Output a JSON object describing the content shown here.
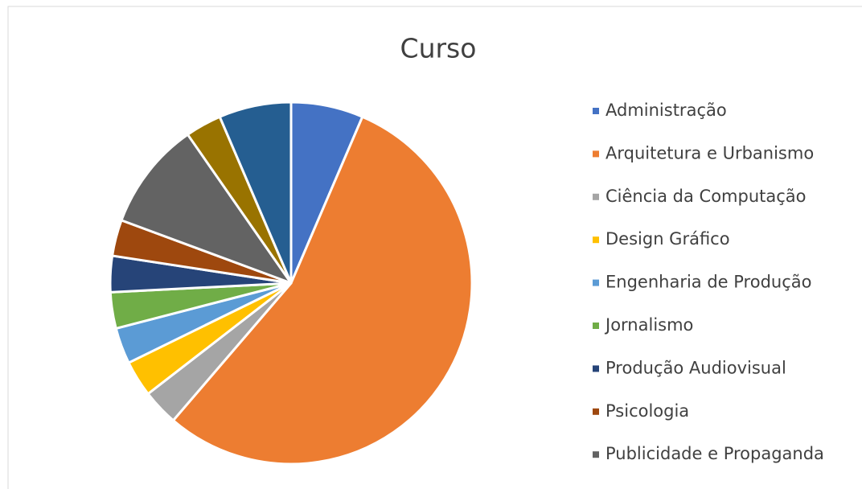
{
  "chart_data": {
    "type": "pie",
    "title": "Curso",
    "categories": [
      "Administração",
      "Arquitetura e Urbanismo",
      "Ciência da Computação",
      "Design Gráfico",
      "Engenharia de Produção",
      "Jornalismo",
      "Produção Audiovisual",
      "Psicologia",
      "Publicidade e Propaganda",
      null,
      null
    ],
    "values": [
      2,
      17,
      1,
      1,
      1,
      1,
      1,
      1,
      3,
      1,
      2
    ],
    "colors": [
      "#4472c4",
      "#ed7d31",
      "#a5a5a5",
      "#ffc000",
      "#5b9bd5",
      "#70ad47",
      "#264478",
      "#9e480e",
      "#636363",
      "#997300",
      "#255e91"
    ],
    "legend": "right"
  }
}
